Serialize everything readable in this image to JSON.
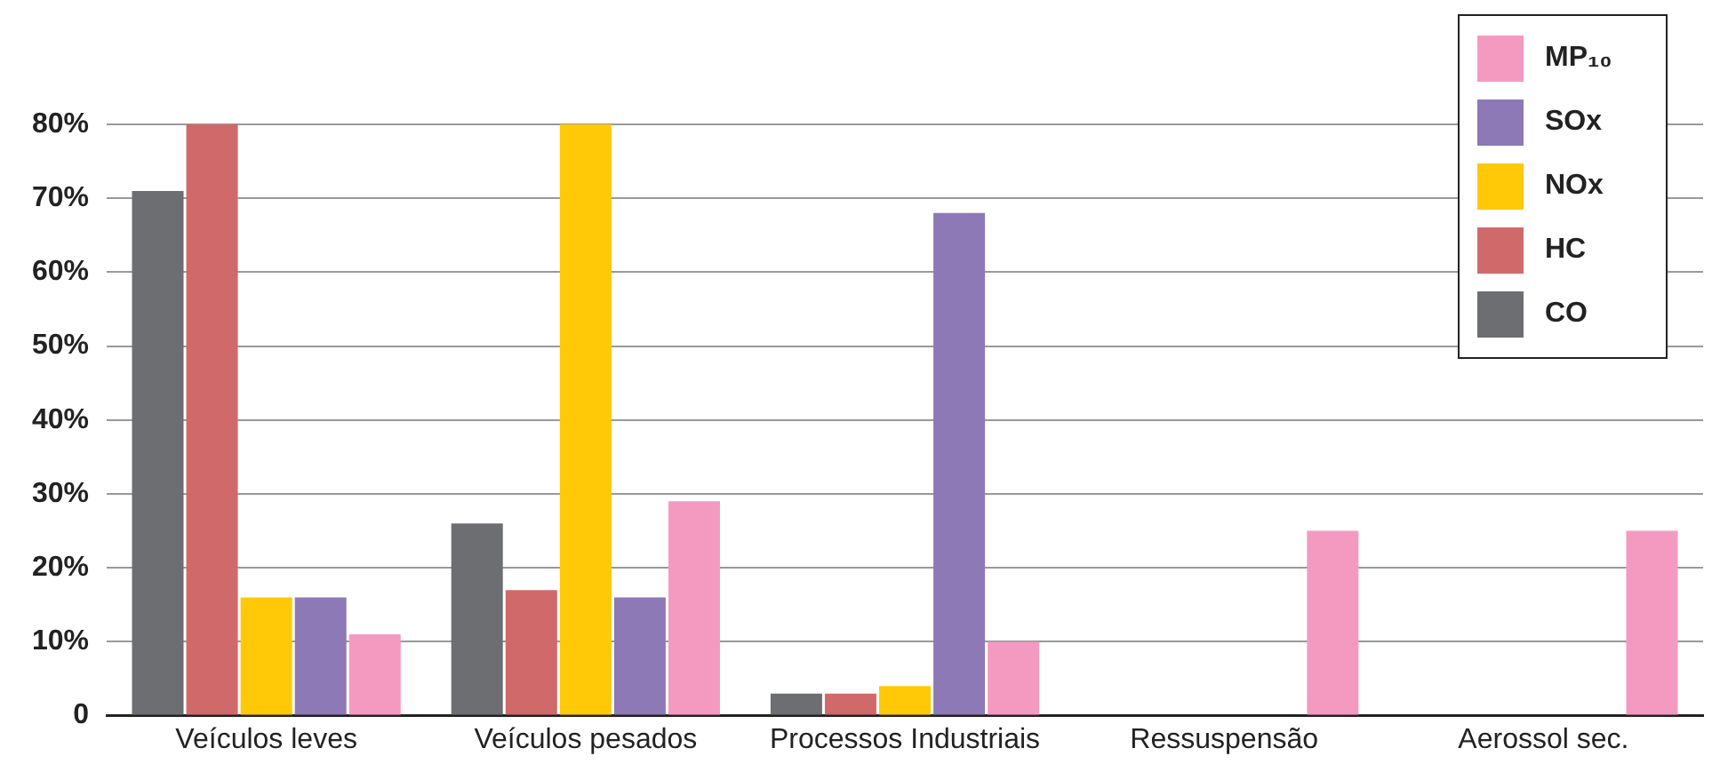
{
  "chart_data": {
    "type": "bar",
    "categories": [
      "Veículos leves",
      "Veículos pesados",
      "Processos Industriais",
      "Ressuspensão",
      "Aerossol sec."
    ],
    "series": [
      {
        "name": "CO",
        "color": "#6d6e71",
        "values": [
          71,
          26,
          3,
          0,
          0
        ]
      },
      {
        "name": "HC",
        "color": "#d06a6a",
        "values": [
          80,
          17,
          3,
          0,
          0
        ]
      },
      {
        "name": "NOx",
        "color": "#ffc907",
        "values": [
          16,
          80,
          4,
          0,
          0
        ]
      },
      {
        "name": "SOx",
        "color": "#8c79b5",
        "values": [
          16,
          16,
          68,
          0,
          0
        ]
      },
      {
        "name": "MP₁₀",
        "color": "#f49ac1",
        "values": [
          11,
          29,
          10,
          25,
          25
        ]
      }
    ],
    "ylim": [
      0,
      80
    ],
    "yticks": [
      0,
      {
        "value": 10,
        "label": "10%"
      },
      {
        "value": 20,
        "label": "20%"
      },
      {
        "value": 30,
        "label": "30%"
      },
      {
        "value": 40,
        "label": "40%"
      },
      {
        "value": 50,
        "label": "50%"
      },
      {
        "value": 60,
        "label": "60%"
      },
      {
        "value": 70,
        "label": "70%"
      },
      {
        "value": 80,
        "label": "80%"
      }
    ],
    "grid": "y",
    "legend": "top right"
  }
}
